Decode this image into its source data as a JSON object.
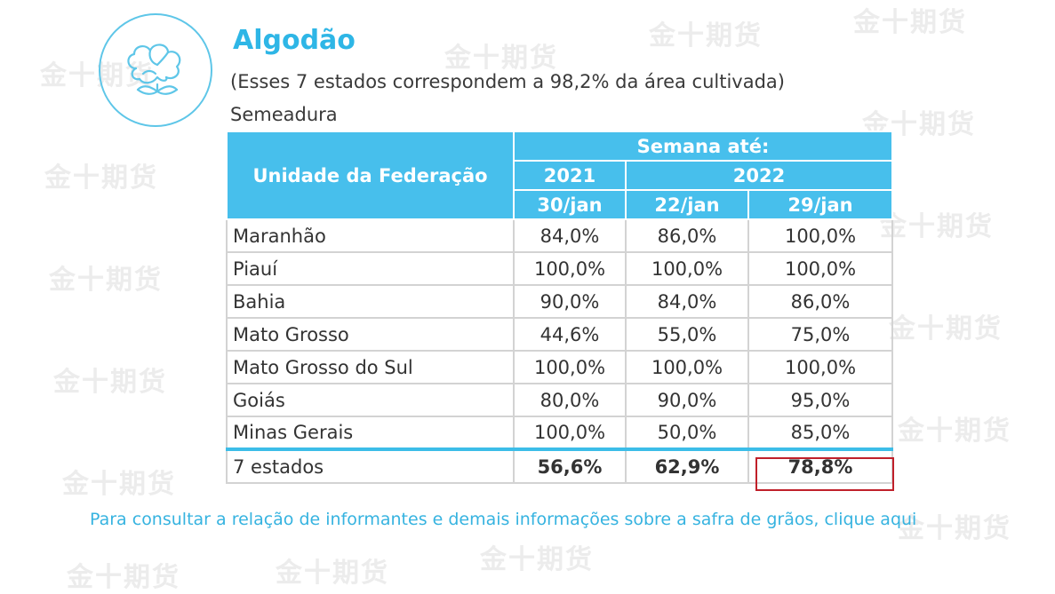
{
  "watermark": "金十期货",
  "header": {
    "title": "Algodão",
    "subtitle": "(Esses 7 estados correspondem a 98,2% da área cultivada)",
    "section": "Semeadura"
  },
  "table": {
    "uf_header": "Unidade da Federação",
    "week_header": "Semana até:",
    "year_2021": "2021",
    "year_2022": "2022",
    "date_1": "30/jan",
    "date_2": "22/jan",
    "date_3": "29/jan",
    "rows": [
      {
        "uf": "Maranhão",
        "v1": "84,0%",
        "v2": "86,0%",
        "v3": "100,0%"
      },
      {
        "uf": "Piauí",
        "v1": "100,0%",
        "v2": "100,0%",
        "v3": "100,0%"
      },
      {
        "uf": "Bahia",
        "v1": "90,0%",
        "v2": "84,0%",
        "v3": "86,0%"
      },
      {
        "uf": "Mato Grosso",
        "v1": "44,6%",
        "v2": "55,0%",
        "v3": "75,0%"
      },
      {
        "uf": "Mato Grosso do Sul",
        "v1": "100,0%",
        "v2": "100,0%",
        "v3": "100,0%"
      },
      {
        "uf": "Goiás",
        "v1": "80,0%",
        "v2": "90,0%",
        "v3": "95,0%"
      },
      {
        "uf": "Minas Gerais",
        "v1": "100,0%",
        "v2": "50,0%",
        "v3": "85,0%"
      }
    ],
    "total": {
      "uf": "7 estados",
      "v1": "56,6%",
      "v2": "62,9%",
      "v3": "78,8%"
    }
  },
  "footnote": "Para consultar a relação de informantes e demais informações sobre a safra de grãos, clique aqui",
  "colors": {
    "accent": "#47bfec",
    "title": "#2eb6e6",
    "highlight": "#c0202a",
    "link": "#36b3e0"
  }
}
